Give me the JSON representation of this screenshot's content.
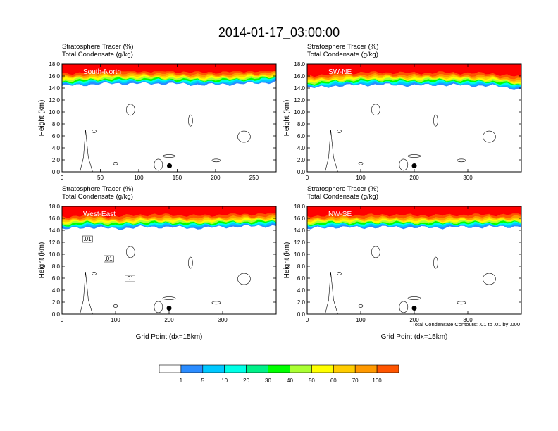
{
  "title": "2014-01-17_03:00:00",
  "colors": {
    "scale": [
      "#ffffff",
      "#2b8cff",
      "#00c8ff",
      "#00ffe6",
      "#00f088",
      "#00ff00",
      "#aaff33",
      "#ffff00",
      "#ffcc00",
      "#ff9900",
      "#ff5500",
      "#ff0000"
    ],
    "contour": "#000000",
    "marker": "#000000"
  },
  "colorbar": {
    "labels": [
      "1",
      "5",
      "10",
      "20",
      "30",
      "40",
      "50",
      "60",
      "70",
      "100"
    ]
  },
  "footnote": "Total Condensate Contours: .01 to .01 by .000",
  "chart_data": [
    {
      "type": "heatmap",
      "panel": "top-left",
      "header1": "Stratosphere Tracer   (%)",
      "header2": "Total Condensate   (g/kg)",
      "label": "South-North",
      "ylabel": "Height (km)",
      "xlabel": "",
      "xlim": [
        0,
        279
      ],
      "ylim": [
        0,
        18
      ],
      "xticks": [
        0,
        50,
        100,
        150,
        200,
        250
      ],
      "yticks": [
        "0.0",
        "2.0",
        "4.0",
        "6.0",
        "8.0",
        "10.0",
        "12.0",
        "14.0",
        "16.0",
        "18.0"
      ],
      "marker_x": 140,
      "marker_y": 1.0,
      "tracer_base": [
        [
          0,
          14.8
        ],
        [
          30,
          15.0
        ],
        [
          60,
          15.2
        ],
        [
          100,
          15.2
        ],
        [
          140,
          15.2
        ],
        [
          180,
          15.0
        ],
        [
          220,
          15.1
        ],
        [
          260,
          15.3
        ],
        [
          279,
          15.5
        ]
      ],
      "contour_labels": []
    },
    {
      "type": "heatmap",
      "panel": "top-right",
      "header1": "Stratosphere Tracer   (%)",
      "header2": "Total Condensate   (g/kg)",
      "label": "SW-NE",
      "ylabel": "Height (km)",
      "xlabel": "",
      "xlim": [
        0,
        400
      ],
      "ylim": [
        0,
        18
      ],
      "xticks": [
        0,
        100,
        200,
        300
      ],
      "yticks": [
        "0.0",
        "2.0",
        "4.0",
        "6.0",
        "8.0",
        "10.0",
        "12.0",
        "14.0",
        "16.0",
        "18.0"
      ],
      "marker_x": 200,
      "marker_y": 1.0,
      "tracer_base": [
        [
          0,
          14.4
        ],
        [
          50,
          14.8
        ],
        [
          100,
          15.0
        ],
        [
          150,
          15.0
        ],
        [
          200,
          14.9
        ],
        [
          250,
          15.0
        ],
        [
          300,
          14.9
        ],
        [
          350,
          14.8
        ],
        [
          400,
          14.2
        ]
      ],
      "contour_labels": []
    },
    {
      "type": "heatmap",
      "panel": "bottom-left",
      "header1": "Stratosphere Tracer   (%)",
      "header2": "Total Condensate   (g/kg)",
      "label": "West-East",
      "ylabel": "Height (km)",
      "xlabel": "Grid Point (dx=15km)",
      "xlim": [
        0,
        400
      ],
      "ylim": [
        0,
        18
      ],
      "xticks": [
        0,
        100,
        200,
        300
      ],
      "yticks": [
        "0.0",
        "2.0",
        "4.0",
        "6.0",
        "8.0",
        "10.0",
        "12.0",
        "14.0",
        "16.0",
        "18.0"
      ],
      "marker_x": 200,
      "marker_y": 1.0,
      "tracer_base": [
        [
          0,
          14.6
        ],
        [
          50,
          15.0
        ],
        [
          100,
          14.7
        ],
        [
          150,
          15.0
        ],
        [
          200,
          15.0
        ],
        [
          250,
          14.8
        ],
        [
          300,
          15.0
        ],
        [
          350,
          15.1
        ],
        [
          400,
          15.2
        ]
      ],
      "contour_labels": [
        ".01",
        ".01",
        ".01"
      ]
    },
    {
      "type": "heatmap",
      "panel": "bottom-right",
      "header1": "Stratosphere Tracer   (%)",
      "header2": "Total Condensate   (g/kg)",
      "label": "NW-SE",
      "ylabel": "Height (km)",
      "xlabel": "Grid Point (dx=15km)",
      "xlim": [
        0,
        400
      ],
      "ylim": [
        0,
        18
      ],
      "xticks": [
        0,
        100,
        200,
        300
      ],
      "yticks": [
        "0.0",
        "2.0",
        "4.0",
        "6.0",
        "8.0",
        "10.0",
        "12.0",
        "14.0",
        "16.0",
        "18.0"
      ],
      "marker_x": 200,
      "marker_y": 1.0,
      "tracer_base": [
        [
          0,
          14.7
        ],
        [
          50,
          15.0
        ],
        [
          100,
          14.9
        ],
        [
          150,
          15.0
        ],
        [
          200,
          14.9
        ],
        [
          250,
          14.9
        ],
        [
          300,
          15.0
        ],
        [
          350,
          15.0
        ],
        [
          400,
          15.1
        ]
      ],
      "contour_labels": []
    }
  ]
}
